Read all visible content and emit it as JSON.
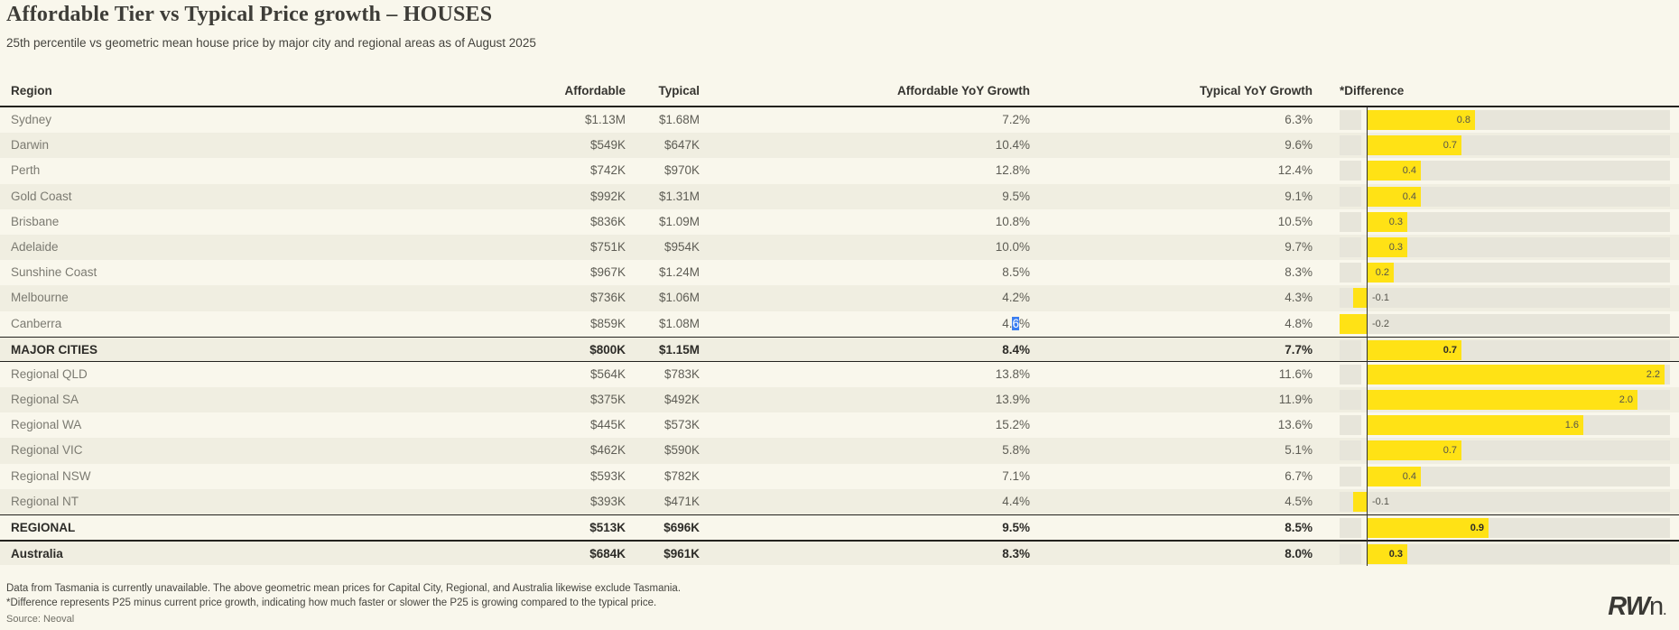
{
  "title": "Affordable Tier vs Typical Price growth – HOUSES",
  "subtitle": "25th percentile vs geometric mean house price by major city and regional areas as of August 2025",
  "chart_data": {
    "type": "table",
    "title": "Affordable Tier vs Typical Price growth – HOUSES",
    "subtitle": "25th percentile vs geometric mean house price by major city and regional areas as of August 2025",
    "columns": [
      "Region",
      "Affordable",
      "Typical",
      "Affordable YoY Growth",
      "Typical YoY Growth",
      "*Difference"
    ],
    "difference_axis": {
      "min": -0.2,
      "max": 2.24,
      "baseline": 0,
      "units": "percentage points",
      "bar_type": "bar",
      "legend": "none",
      "grid": "off"
    },
    "rows": [
      {
        "region": "Sydney",
        "affordable": "$1.13M",
        "typical": "$1.68M",
        "affordable_yoy": "7.2%",
        "typical_yoy": "6.3%",
        "difference": 0.8,
        "type": "normal"
      },
      {
        "region": "Darwin",
        "affordable": "$549K",
        "typical": "$647K",
        "affordable_yoy": "10.4%",
        "typical_yoy": "9.6%",
        "difference": 0.7,
        "type": "normal"
      },
      {
        "region": "Perth",
        "affordable": "$742K",
        "typical": "$970K",
        "affordable_yoy": "12.8%",
        "typical_yoy": "12.4%",
        "difference": 0.4,
        "type": "normal"
      },
      {
        "region": "Gold Coast",
        "affordable": "$992K",
        "typical": "$1.31M",
        "affordable_yoy": "9.5%",
        "typical_yoy": "9.1%",
        "difference": 0.4,
        "type": "normal"
      },
      {
        "region": "Brisbane",
        "affordable": "$836K",
        "typical": "$1.09M",
        "affordable_yoy": "10.8%",
        "typical_yoy": "10.5%",
        "difference": 0.3,
        "type": "normal"
      },
      {
        "region": "Adelaide",
        "affordable": "$751K",
        "typical": "$954K",
        "affordable_yoy": "10.0%",
        "typical_yoy": "9.7%",
        "difference": 0.3,
        "type": "normal"
      },
      {
        "region": "Sunshine Coast",
        "affordable": "$967K",
        "typical": "$1.24M",
        "affordable_yoy": "8.5%",
        "typical_yoy": "8.3%",
        "difference": 0.2,
        "type": "normal"
      },
      {
        "region": "Melbourne",
        "affordable": "$736K",
        "typical": "$1.06M",
        "affordable_yoy": "4.2%",
        "typical_yoy": "4.3%",
        "difference": -0.1,
        "type": "normal"
      },
      {
        "region": "Canberra",
        "affordable": "$859K",
        "typical": "$1.08M",
        "affordable_yoy": "4.6%",
        "typical_yoy": "4.8%",
        "difference": -0.2,
        "type": "normal",
        "selection": {
          "pre": "4.",
          "selected": "6",
          "post": "%"
        }
      },
      {
        "region": "MAJOR CITIES",
        "affordable": "$800K",
        "typical": "$1.15M",
        "affordable_yoy": "8.4%",
        "typical_yoy": "7.7%",
        "difference": 0.7,
        "type": "summary"
      },
      {
        "region": "Regional QLD",
        "affordable": "$564K",
        "typical": "$783K",
        "affordable_yoy": "13.8%",
        "typical_yoy": "11.6%",
        "difference": 2.2,
        "type": "normal"
      },
      {
        "region": "Regional SA",
        "affordable": "$375K",
        "typical": "$492K",
        "affordable_yoy": "13.9%",
        "typical_yoy": "11.9%",
        "difference": 2.0,
        "type": "normal"
      },
      {
        "region": "Regional WA",
        "affordable": "$445K",
        "typical": "$573K",
        "affordable_yoy": "15.2%",
        "typical_yoy": "13.6%",
        "difference": 1.6,
        "type": "normal"
      },
      {
        "region": "Regional VIC",
        "affordable": "$462K",
        "typical": "$590K",
        "affordable_yoy": "5.8%",
        "typical_yoy": "5.1%",
        "difference": 0.7,
        "type": "normal"
      },
      {
        "region": "Regional NSW",
        "affordable": "$593K",
        "typical": "$782K",
        "affordable_yoy": "7.1%",
        "typical_yoy": "6.7%",
        "difference": 0.4,
        "type": "normal"
      },
      {
        "region": "Regional NT",
        "affordable": "$393K",
        "typical": "$471K",
        "affordable_yoy": "4.4%",
        "typical_yoy": "4.5%",
        "difference": -0.1,
        "type": "normal"
      },
      {
        "region": "REGIONAL",
        "affordable": "$513K",
        "typical": "$696K",
        "affordable_yoy": "9.5%",
        "typical_yoy": "8.5%",
        "difference": 0.9,
        "type": "summary"
      },
      {
        "region": "Australia",
        "affordable": "$684K",
        "typical": "$961K",
        "affordable_yoy": "8.3%",
        "typical_yoy": "8.0%",
        "difference": 0.3,
        "type": "total"
      }
    ]
  },
  "footnotes": [
    "Data from Tasmania is currently unavailable. The above geometric mean prices for Capital City, Regional, and Australia likewise exclude Tasmania.",
    "*Difference represents P25 minus current price growth, indicating how much faster or slower the P25 is growing compared to the typical price."
  ],
  "source": "Source: Neoval",
  "logo": {
    "bold": "RW",
    "light": "n",
    "dot": "."
  },
  "colors": {
    "background": "#f9f7ec",
    "row_stripe": "#f0eee1",
    "bar_yellow": "#ffe215",
    "track_gray": "#e7e5da",
    "selection_blue": "#3b7ef0",
    "border_black": "#23221e"
  }
}
